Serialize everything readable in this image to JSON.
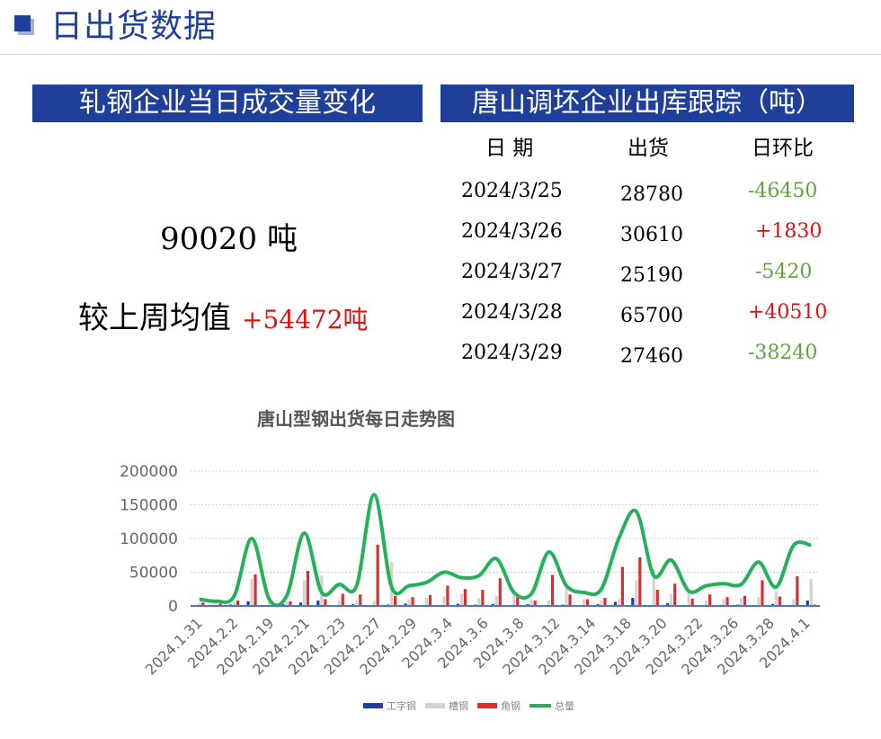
{
  "header": {
    "title": "日出货数据"
  },
  "left_panel": {
    "banner": "轧钢企业当日成交量变化",
    "volume": "90020 吨",
    "compare_label": "较上周均值",
    "compare_value": "+54472吨"
  },
  "right_panel": {
    "banner": "唐山调坯企业出库跟踪（吨）",
    "headers": [
      "日  期",
      "出货",
      "日环比"
    ],
    "rows": [
      {
        "date": "2024/3/25",
        "shipment": "28780",
        "change": "-46450"
      },
      {
        "date": "2024/3/26",
        "shipment": "30610",
        "change": "+1830"
      },
      {
        "date": "2024/3/27",
        "shipment": "25190",
        "change": "-5420"
      },
      {
        "date": "2024/3/28",
        "shipment": "65700",
        "change": "+40510"
      },
      {
        "date": "2024/3/29",
        "shipment": "27460",
        "change": "-38240"
      }
    ]
  },
  "colors": {
    "brand": "#1f3f99",
    "positive": "#e01010",
    "negative": "#5fa33a"
  },
  "chart_data": {
    "type": "bar",
    "title": "唐山型钢出货每日走势图",
    "ylim": [
      0,
      200000
    ],
    "yticks": [
      "0",
      "50000",
      "100000",
      "150000",
      "200000"
    ],
    "xtick_labels": [
      "2024.1.31",
      "2024.2.2",
      "2024.2.19",
      "2024.2.21",
      "2024.2.23",
      "2024.2.27",
      "2024.2.29",
      "2024.3.4",
      "2024.3.6",
      "2024.3.8",
      "2024.3.12",
      "2024.3.14",
      "2024.3.18",
      "2024.3.20",
      "2024.3.22",
      "2024.3.26",
      "2024.3.28",
      "2024.4.1"
    ],
    "legend_position": "bottom",
    "grid": true,
    "series": [
      {
        "name": "工字钢",
        "type": "bar",
        "color": "#1f3f99",
        "values": [
          1500,
          800,
          2000,
          7000,
          1000,
          2500,
          5000,
          8000,
          1500,
          2500,
          1000,
          2000,
          3500,
          1500,
          1500,
          3000,
          2000,
          3000,
          1000,
          2500,
          1000,
          2000,
          1000,
          2500,
          6000,
          12000,
          1000,
          4000,
          1000,
          1000,
          1500,
          2000,
          1000,
          3000,
          1500,
          8000
        ]
      },
      {
        "name": "槽钢",
        "type": "bar",
        "color": "#d3d3d3",
        "values": [
          4000,
          3000,
          5000,
          40000,
          6000,
          7000,
          38000,
          45000,
          8000,
          9000,
          7000,
          65000,
          10000,
          12000,
          14000,
          18000,
          12000,
          15000,
          18000,
          10000,
          8000,
          32000,
          10000,
          8000,
          10000,
          38000,
          55000,
          18000,
          22000,
          8000,
          10000,
          12000,
          13000,
          22000,
          10000,
          40000
        ]
      },
      {
        "name": "角钢",
        "type": "bar",
        "color": "#d62f2f",
        "values": [
          5000,
          3500,
          8000,
          47000,
          4000,
          7000,
          52000,
          10000,
          18000,
          17000,
          91000,
          15000,
          13000,
          16000,
          30000,
          25000,
          24000,
          41000,
          13000,
          8000,
          46000,
          17000,
          10000,
          12000,
          58000,
          72000,
          24000,
          33000,
          11000,
          17000,
          13000,
          15000,
          38000,
          14000,
          44000,
          2000
        ]
      },
      {
        "name": "总量",
        "type": "line",
        "color": "#25b15c",
        "values": [
          10000,
          7000,
          15000,
          100000,
          10000,
          15000,
          108000,
          20000,
          32000,
          30000,
          165000,
          28000,
          30000,
          35000,
          50000,
          42000,
          45000,
          70000,
          20000,
          18000,
          80000,
          30000,
          20000,
          25000,
          100000,
          140000,
          45000,
          68000,
          22000,
          30000,
          33000,
          32000,
          65000,
          28000,
          90000,
          90000
        ]
      }
    ]
  }
}
